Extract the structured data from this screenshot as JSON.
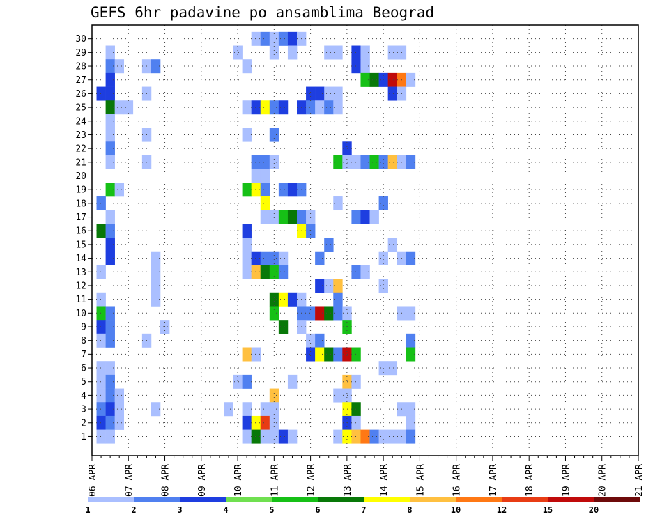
{
  "chart_data": {
    "type": "heatmap",
    "title": "GEFS 6hr padavine po ansamblima Beograd",
    "xlabel": "",
    "ylabel": "",
    "x_tick_labels": [
      "06 APR",
      "07 APR",
      "08 APR",
      "09 APR",
      "10 APR",
      "11 APR",
      "12 APR",
      "13 APR",
      "14 APR",
      "15 APR",
      "16 APR",
      "17 APR",
      "18 APR",
      "19 APR",
      "20 APR",
      "21 APR"
    ],
    "y_tick_labels": [
      "1",
      "2",
      "3",
      "4",
      "5",
      "6",
      "7",
      "8",
      "9",
      "10",
      "11",
      "12",
      "13",
      "14",
      "15",
      "16",
      "17",
      "18",
      "19",
      "20",
      "21",
      "22",
      "23",
      "24",
      "25",
      "26",
      "27",
      "28",
      "29",
      "30"
    ],
    "x_range": [
      "06 APR",
      "21 APR"
    ],
    "y_range": [
      0,
      30
    ],
    "time_step_hours": 6,
    "grid": true,
    "legend_placement": "bottom",
    "legend_labels": [
      "1",
      "2",
      "3",
      "4",
      "5",
      "6",
      "7",
      "8",
      "10",
      "12",
      "15",
      "20"
    ],
    "legend_colors": [
      "#aabfff",
      "#5080f0",
      "#1e3ee0",
      "#70e050",
      "#16c016",
      "#087808",
      "#ffff00",
      "#ffc040",
      "#ff7814",
      "#e83c14",
      "#c00a0a",
      "#6e0a0a"
    ],
    "cells": [
      {
        "member": 30,
        "x": [
          18,
          19,
          20,
          21,
          22
        ],
        "level": [
          1,
          2,
          1,
          2,
          3
        ]
      },
      {
        "member": 30,
        "x": [
          23
        ],
        "level": [
          1
        ]
      },
      {
        "member": 29,
        "x": [
          2,
          16,
          20,
          22,
          26,
          27,
          29,
          30
        ],
        "level": [
          1,
          1,
          1,
          1,
          1,
          1,
          3,
          1
        ]
      },
      {
        "member": 29,
        "x": [
          33,
          34
        ],
        "level": [
          1,
          1
        ]
      },
      {
        "member": 28,
        "x": [
          2,
          3,
          6,
          7,
          17,
          29,
          30
        ],
        "level": [
          2,
          1,
          1,
          2,
          1,
          3,
          1
        ]
      },
      {
        "member": 27,
        "x": [
          2,
          30,
          31,
          32,
          33,
          34
        ],
        "level": [
          3,
          5,
          6,
          3,
          11,
          9
        ]
      },
      {
        "member": 27,
        "x": [
          35
        ],
        "level": [
          1
        ]
      },
      {
        "member": 26,
        "x": [
          1,
          2,
          6,
          24,
          25,
          26,
          27,
          33,
          34
        ],
        "level": [
          3,
          3,
          1,
          3,
          3,
          1,
          1,
          3,
          1
        ]
      },
      {
        "member": 25,
        "x": [
          2,
          3,
          4,
          17,
          18,
          19,
          20,
          21,
          23,
          24,
          25,
          26,
          27
        ],
        "level": [
          6,
          1,
          1,
          1,
          3,
          7,
          2,
          3,
          3,
          2,
          1,
          2,
          1
        ]
      },
      {
        "member": 24,
        "x": [
          2
        ],
        "level": [
          1
        ]
      },
      {
        "member": 23,
        "x": [
          2,
          6,
          17,
          20
        ],
        "level": [
          1,
          1,
          1,
          2
        ]
      },
      {
        "member": 22,
        "x": [
          2,
          28
        ],
        "level": [
          2,
          3
        ]
      },
      {
        "member": 21,
        "x": [
          2,
          6,
          18,
          19,
          20,
          27,
          28,
          29,
          30,
          31,
          32,
          33,
          34,
          35
        ],
        "level": [
          1,
          1,
          2,
          2,
          1,
          5,
          1,
          1,
          2,
          5,
          2,
          8,
          1,
          2
        ]
      },
      {
        "member": 20,
        "x": [
          18,
          19
        ],
        "level": [
          1,
          1
        ]
      },
      {
        "member": 19,
        "x": [
          2,
          3,
          17,
          18,
          19,
          21,
          22,
          23
        ],
        "level": [
          5,
          1,
          5,
          7,
          2,
          2,
          3,
          2
        ]
      },
      {
        "member": 18,
        "x": [
          1,
          19,
          27,
          32
        ],
        "level": [
          2,
          7,
          1,
          2
        ]
      },
      {
        "member": 17,
        "x": [
          2,
          19,
          20,
          21,
          22,
          23,
          24,
          29,
          30,
          31
        ],
        "level": [
          1,
          1,
          1,
          5,
          6,
          2,
          1,
          2,
          3,
          1
        ]
      },
      {
        "member": 16,
        "x": [
          1,
          2,
          17,
          23,
          24
        ],
        "level": [
          6,
          2,
          3,
          7,
          2
        ]
      },
      {
        "member": 15,
        "x": [
          2,
          17,
          26,
          33
        ],
        "level": [
          3,
          1,
          2,
          1
        ]
      },
      {
        "member": 14,
        "x": [
          2,
          7,
          17,
          18,
          19,
          20,
          21,
          25,
          32,
          34,
          35
        ],
        "level": [
          3,
          1,
          1,
          3,
          2,
          2,
          1,
          2,
          1,
          1,
          2
        ]
      },
      {
        "member": 13,
        "x": [
          1,
          7,
          17,
          18,
          19,
          20,
          21,
          29,
          30
        ],
        "level": [
          1,
          1,
          1,
          8,
          6,
          5,
          2,
          2,
          1
        ]
      },
      {
        "member": 12,
        "x": [
          7,
          25,
          26,
          27,
          32
        ],
        "level": [
          1,
          3,
          1,
          8,
          1
        ]
      },
      {
        "member": 11,
        "x": [
          1,
          7,
          20,
          21,
          22,
          23,
          27
        ],
        "level": [
          1,
          1,
          6,
          7,
          3,
          1,
          2
        ]
      },
      {
        "member": 10,
        "x": [
          1,
          2,
          20,
          23,
          24,
          25,
          26,
          27,
          28,
          34,
          35
        ],
        "level": [
          5,
          2,
          5,
          2,
          2,
          11,
          6,
          2,
          1,
          1,
          1
        ]
      },
      {
        "member": 9,
        "x": [
          1,
          2,
          8,
          21,
          23,
          28
        ],
        "level": [
          3,
          2,
          1,
          6,
          1,
          5
        ]
      },
      {
        "member": 8,
        "x": [
          1,
          2,
          6,
          24,
          25,
          35
        ],
        "level": [
          1,
          2,
          1,
          1,
          2,
          2
        ]
      },
      {
        "member": 7,
        "x": [
          17,
          18,
          24,
          25,
          26,
          27,
          28,
          29,
          35
        ],
        "level": [
          8,
          1,
          3,
          7,
          6,
          2,
          11,
          5,
          5
        ]
      },
      {
        "member": 6,
        "x": [
          1,
          2,
          32,
          33
        ],
        "level": [
          1,
          1,
          1,
          1
        ]
      },
      {
        "member": 5,
        "x": [
          1,
          2,
          16,
          17,
          22,
          28,
          29
        ],
        "level": [
          1,
          2,
          1,
          2,
          1,
          8,
          1
        ]
      },
      {
        "member": 4,
        "x": [
          1,
          2,
          3,
          20,
          27,
          28
        ],
        "level": [
          1,
          2,
          1,
          8,
          1,
          1
        ]
      },
      {
        "member": 3,
        "x": [
          1,
          2,
          3,
          7,
          15,
          17,
          19,
          20,
          28,
          29,
          34,
          35
        ],
        "level": [
          2,
          3,
          1,
          1,
          1,
          1,
          1,
          1,
          7,
          6,
          1,
          1
        ]
      },
      {
        "member": 2,
        "x": [
          1,
          2,
          3,
          17,
          18,
          19,
          20,
          28,
          29,
          35
        ],
        "level": [
          3,
          2,
          1,
          3,
          7,
          10,
          1,
          3,
          1,
          1
        ]
      },
      {
        "member": 1,
        "x": [
          1,
          2,
          17,
          18,
          19,
          20,
          21,
          22,
          27,
          28,
          29,
          30,
          31,
          32,
          33,
          34,
          35
        ],
        "level": [
          1,
          1,
          1,
          6,
          1,
          1,
          3,
          1,
          1,
          7,
          8,
          9,
          2,
          1,
          1,
          1,
          2
        ]
      }
    ]
  }
}
